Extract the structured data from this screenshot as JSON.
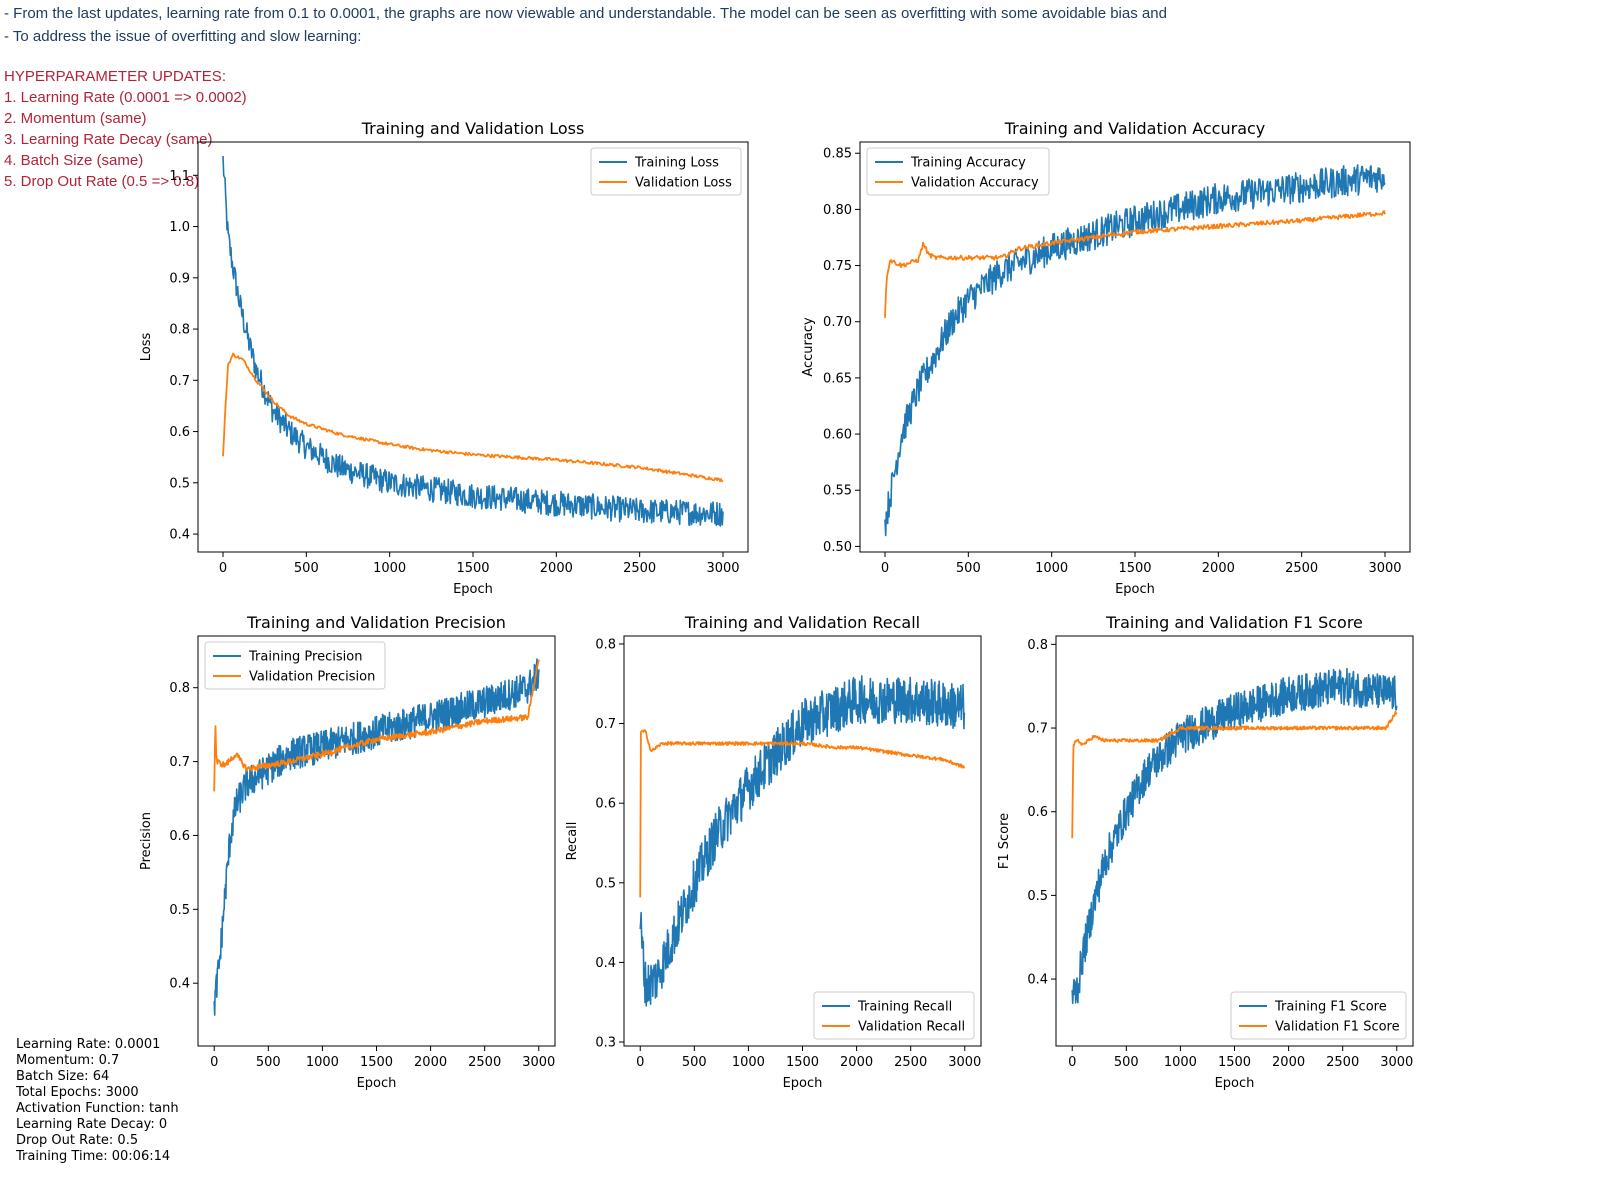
{
  "notes": {
    "line1": "- From the last updates, learning rate from 0.1 to 0.0001, the graphs are now viewable and understandable. The model can be seen as overfitting with some avoidable bias and",
    "line2": "- To address the issue of overfitting and slow learning:"
  },
  "hyperparameter_updates": {
    "heading": "HYPERPARAMETER UPDATES:",
    "items": [
      "1. Learning Rate (0.0001 => 0.0002)",
      "2. Momentum (same)",
      "3. Learning Rate Decay (same)",
      "4. Batch Size (same)",
      "5. Drop Out Rate (0.5 => 0.8)"
    ]
  },
  "run_summary": [
    "Learning Rate: 0.0001",
    "Momentum: 0.7",
    "Batch Size: 64",
    "Total Epochs: 3000",
    "Activation Function: tanh",
    "Learning Rate Decay: 0",
    "Drop Out Rate: 0.5",
    "Training Time: 00:06:14"
  ],
  "colors": {
    "training": "#1f77b4",
    "validation": "#ff7f0e",
    "annotation_mark": "#e0202a"
  },
  "chart_data": [
    {
      "id": "loss",
      "type": "line",
      "title": "Training and Validation Loss",
      "xlabel": "Epoch",
      "ylabel": "Loss",
      "xlim": [
        -150,
        3150
      ],
      "ylim": [
        0.365,
        1.165
      ],
      "xticks": [
        0,
        500,
        1000,
        1500,
        2000,
        2500,
        3000
      ],
      "yticks": [
        0.4,
        0.5,
        0.6,
        0.7,
        0.8,
        0.9,
        1.0,
        1.1
      ],
      "yticklabels": [
        "0.4",
        "0.5",
        "0.6",
        "0.7",
        "0.8",
        "0.9",
        "1.0",
        "1.1"
      ],
      "legend_position": "top-right",
      "series": [
        {
          "name": "Training Loss",
          "role": "training",
          "noise": 0.025,
          "points": [
            [
              0,
              1.13
            ],
            [
              30,
              0.98
            ],
            [
              60,
              0.92
            ],
            [
              100,
              0.85
            ],
            [
              150,
              0.78
            ],
            [
              200,
              0.72
            ],
            [
              300,
              0.64
            ],
            [
              400,
              0.6
            ],
            [
              500,
              0.57
            ],
            [
              700,
              0.53
            ],
            [
              1000,
              0.5
            ],
            [
              1500,
              0.475
            ],
            [
              2000,
              0.46
            ],
            [
              2500,
              0.445
            ],
            [
              3000,
              0.44
            ]
          ]
        },
        {
          "name": "Validation Loss",
          "role": "validation",
          "noise": 0.003,
          "points": [
            [
              0,
              0.55
            ],
            [
              10,
              0.62
            ],
            [
              30,
              0.73
            ],
            [
              60,
              0.75
            ],
            [
              120,
              0.74
            ],
            [
              200,
              0.7
            ],
            [
              300,
              0.66
            ],
            [
              400,
              0.63
            ],
            [
              500,
              0.615
            ],
            [
              700,
              0.595
            ],
            [
              1000,
              0.575
            ],
            [
              1200,
              0.565
            ],
            [
              1500,
              0.555
            ],
            [
              2000,
              0.545
            ],
            [
              2500,
              0.53
            ],
            [
              2800,
              0.515
            ],
            [
              3000,
              0.505
            ]
          ]
        }
      ]
    },
    {
      "id": "accuracy",
      "type": "line",
      "title": "Training and Validation Accuracy",
      "xlabel": "Epoch",
      "ylabel": "Accuracy",
      "xlim": [
        -150,
        3150
      ],
      "ylim": [
        0.495,
        0.86
      ],
      "xticks": [
        0,
        500,
        1000,
        1500,
        2000,
        2500,
        3000
      ],
      "yticks": [
        0.5,
        0.55,
        0.6,
        0.65,
        0.7,
        0.75,
        0.8,
        0.85
      ],
      "yticklabels": [
        "0.50",
        "0.55",
        "0.60",
        "0.65",
        "0.70",
        "0.75",
        "0.80",
        "0.85"
      ],
      "legend_position": "top-left",
      "series": [
        {
          "name": "Training Accuracy",
          "role": "training",
          "noise": 0.014,
          "points": [
            [
              0,
              0.52
            ],
            [
              50,
              0.56
            ],
            [
              100,
              0.6
            ],
            [
              200,
              0.64
            ],
            [
              300,
              0.67
            ],
            [
              400,
              0.7
            ],
            [
              500,
              0.72
            ],
            [
              700,
              0.745
            ],
            [
              1000,
              0.765
            ],
            [
              1500,
              0.79
            ],
            [
              2000,
              0.81
            ],
            [
              2500,
              0.82
            ],
            [
              3000,
              0.83
            ]
          ]
        },
        {
          "name": "Validation Accuracy",
          "role": "validation",
          "noise": 0.002,
          "points": [
            [
              0,
              0.705
            ],
            [
              10,
              0.74
            ],
            [
              30,
              0.755
            ],
            [
              100,
              0.75
            ],
            [
              200,
              0.755
            ],
            [
              230,
              0.77
            ],
            [
              260,
              0.76
            ],
            [
              300,
              0.757
            ],
            [
              700,
              0.757
            ],
            [
              800,
              0.765
            ],
            [
              1000,
              0.77
            ],
            [
              1300,
              0.776
            ],
            [
              1500,
              0.78
            ],
            [
              2000,
              0.785
            ],
            [
              2500,
              0.79
            ],
            [
              3000,
              0.797
            ]
          ]
        }
      ]
    },
    {
      "id": "precision",
      "type": "line",
      "title": "Training and Validation Precision",
      "xlabel": "Epoch",
      "ylabel": "Precision",
      "xlim": [
        -150,
        3150
      ],
      "ylim": [
        0.315,
        0.87
      ],
      "xticks": [
        0,
        500,
        1000,
        1500,
        2000,
        2500,
        3000
      ],
      "yticks": [
        0.4,
        0.5,
        0.6,
        0.7,
        0.8
      ],
      "yticklabels": [
        "0.4",
        "0.5",
        "0.6",
        "0.7",
        "0.8"
      ],
      "legend_position": "top-left",
      "series": [
        {
          "name": "Training Precision",
          "role": "training",
          "noise": 0.022,
          "points": [
            [
              0,
              0.37
            ],
            [
              50,
              0.43
            ],
            [
              100,
              0.52
            ],
            [
              150,
              0.6
            ],
            [
              200,
              0.64
            ],
            [
              300,
              0.67
            ],
            [
              500,
              0.69
            ],
            [
              700,
              0.71
            ],
            [
              1000,
              0.72
            ],
            [
              1500,
              0.74
            ],
            [
              2000,
              0.76
            ],
            [
              2500,
              0.78
            ],
            [
              2900,
              0.8
            ],
            [
              3000,
              0.82
            ]
          ]
        },
        {
          "name": "Validation Precision",
          "role": "validation",
          "noise": 0.004,
          "points": [
            [
              0,
              0.66
            ],
            [
              10,
              0.76
            ],
            [
              20,
              0.7
            ],
            [
              100,
              0.695
            ],
            [
              200,
              0.71
            ],
            [
              300,
              0.69
            ],
            [
              700,
              0.7
            ],
            [
              1000,
              0.71
            ],
            [
              1500,
              0.73
            ],
            [
              2000,
              0.74
            ],
            [
              2500,
              0.755
            ],
            [
              2900,
              0.76
            ],
            [
              3000,
              0.84
            ]
          ]
        }
      ]
    },
    {
      "id": "recall",
      "type": "line",
      "title": "Training and Validation Recall",
      "xlabel": "Epoch",
      "ylabel": "Recall",
      "xlim": [
        -150,
        3150
      ],
      "ylim": [
        0.295,
        0.81
      ],
      "xticks": [
        0,
        500,
        1000,
        1500,
        2000,
        2500,
        3000
      ],
      "yticks": [
        0.3,
        0.4,
        0.5,
        0.6,
        0.7,
        0.8
      ],
      "yticklabels": [
        "0.3",
        "0.4",
        "0.5",
        "0.6",
        "0.7",
        "0.8"
      ],
      "legend_position": "bottom-right",
      "series": [
        {
          "name": "Training Recall",
          "role": "training",
          "noise": 0.03,
          "points": [
            [
              0,
              0.45
            ],
            [
              50,
              0.37
            ],
            [
              150,
              0.38
            ],
            [
              300,
              0.43
            ],
            [
              500,
              0.5
            ],
            [
              700,
              0.56
            ],
            [
              1000,
              0.62
            ],
            [
              1300,
              0.67
            ],
            [
              1500,
              0.7
            ],
            [
              2000,
              0.73
            ],
            [
              2500,
              0.73
            ],
            [
              3000,
              0.72
            ]
          ]
        },
        {
          "name": "Validation Recall",
          "role": "validation",
          "noise": 0.002,
          "points": [
            [
              0,
              0.48
            ],
            [
              5,
              0.69
            ],
            [
              50,
              0.69
            ],
            [
              100,
              0.665
            ],
            [
              200,
              0.675
            ],
            [
              1500,
              0.675
            ],
            [
              1800,
              0.67
            ],
            [
              2000,
              0.67
            ],
            [
              2500,
              0.66
            ],
            [
              2800,
              0.655
            ],
            [
              3000,
              0.645
            ]
          ]
        }
      ]
    },
    {
      "id": "f1",
      "type": "line",
      "title": "Training and Validation F1 Score",
      "xlabel": "Epoch",
      "ylabel": "F1 Score",
      "xlim": [
        -150,
        3150
      ],
      "ylim": [
        0.32,
        0.81
      ],
      "xticks": [
        0,
        500,
        1000,
        1500,
        2000,
        2500,
        3000
      ],
      "yticks": [
        0.4,
        0.5,
        0.6,
        0.7,
        0.8
      ],
      "yticklabels": [
        "0.4",
        "0.5",
        "0.6",
        "0.7",
        "0.8"
      ],
      "legend_position": "bottom-right",
      "series": [
        {
          "name": "Training F1 Score",
          "role": "training",
          "noise": 0.022,
          "points": [
            [
              0,
              0.38
            ],
            [
              50,
              0.39
            ],
            [
              100,
              0.43
            ],
            [
              200,
              0.49
            ],
            [
              300,
              0.54
            ],
            [
              500,
              0.6
            ],
            [
              700,
              0.65
            ],
            [
              1000,
              0.69
            ],
            [
              1500,
              0.72
            ],
            [
              2000,
              0.74
            ],
            [
              2500,
              0.75
            ],
            [
              3000,
              0.74
            ]
          ]
        },
        {
          "name": "Validation F1 Score",
          "role": "validation",
          "noise": 0.002,
          "points": [
            [
              0,
              0.57
            ],
            [
              10,
              0.68
            ],
            [
              50,
              0.685
            ],
            [
              100,
              0.68
            ],
            [
              200,
              0.69
            ],
            [
              300,
              0.685
            ],
            [
              800,
              0.685
            ],
            [
              1000,
              0.7
            ],
            [
              2000,
              0.7
            ],
            [
              2500,
              0.7
            ],
            [
              2900,
              0.7
            ],
            [
              3000,
              0.72
            ]
          ]
        }
      ]
    }
  ]
}
